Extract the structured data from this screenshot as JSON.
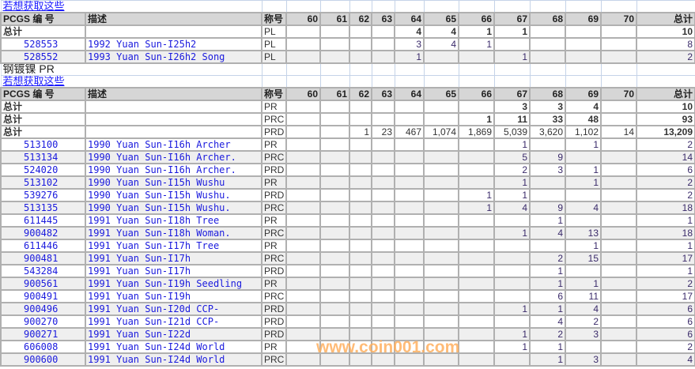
{
  "grade_headers": [
    "60",
    "61",
    "62",
    "63",
    "64",
    "65",
    "66",
    "67",
    "68",
    "69",
    "70"
  ],
  "header": {
    "pcgs": "PCGS 编 号",
    "desc": "描述",
    "designation": "称号",
    "total": "总计"
  },
  "sections": [
    {
      "title": "",
      "link": "若想获取这些",
      "totals": [
        {
          "label": "总计",
          "des": "PL",
          "grades": [
            "",
            "",
            "",
            "",
            "4",
            "4",
            "1",
            "1",
            "",
            "",
            ""
          ],
          "total": "10"
        }
      ],
      "rows": [
        {
          "id": "528553",
          "desc": "1992 Yuan Sun-I25h2",
          "des": "PL",
          "grades": [
            "",
            "",
            "",
            "",
            "3",
            "4",
            "1",
            "",
            "",
            "",
            ""
          ],
          "total": "8"
        },
        {
          "id": "528552",
          "desc": "1993 Yuan Sun-I26h2 Song",
          "des": "PL",
          "grades": [
            "",
            "",
            "",
            "",
            "1",
            "",
            "",
            "1",
            "",
            "",
            ""
          ],
          "total": "2"
        }
      ]
    },
    {
      "title": "钢镀镍  PR",
      "link": "若想获取这些",
      "totals": [
        {
          "label": "总计",
          "des": "PR",
          "grades": [
            "",
            "",
            "",
            "",
            "",
            "",
            "",
            "3",
            "3",
            "4",
            ""
          ],
          "total": "10"
        },
        {
          "label": "总计",
          "des": "PRC",
          "grades": [
            "",
            "",
            "",
            "",
            "",
            "",
            "1",
            "11",
            "33",
            "48",
            ""
          ],
          "total": "93"
        },
        {
          "label": "总计",
          "des": "PRD",
          "grades": [
            "",
            "",
            "1",
            "23",
            "467",
            "1,074",
            "1,869",
            "5,039",
            "3,620",
            "1,102",
            "14"
          ],
          "total": "13,209"
        }
      ],
      "rows": [
        {
          "id": "513100",
          "desc": "1990 Yuan Sun-I16h Archer",
          "des": "PR",
          "grades": [
            "",
            "",
            "",
            "",
            "",
            "",
            "",
            "1",
            "",
            "1",
            ""
          ],
          "total": "2"
        },
        {
          "id": "513134",
          "desc": "1990 Yuan Sun-I16h Archer.",
          "des": "PRC",
          "grades": [
            "",
            "",
            "",
            "",
            "",
            "",
            "",
            "5",
            "9",
            "",
            ""
          ],
          "total": "14"
        },
        {
          "id": "524020",
          "desc": "1990 Yuan Sun-I16h Archer.",
          "des": "PRD",
          "grades": [
            "",
            "",
            "",
            "",
            "",
            "",
            "",
            "2",
            "3",
            "1",
            ""
          ],
          "total": "6"
        },
        {
          "id": "513102",
          "desc": "1990 Yuan Sun-I15h Wushu",
          "des": "PR",
          "grades": [
            "",
            "",
            "",
            "",
            "",
            "",
            "",
            "1",
            "",
            "1",
            ""
          ],
          "total": "2"
        },
        {
          "id": "539276",
          "desc": "1990 Yuan Sun-I15h Wushu.",
          "des": "PRD",
          "grades": [
            "",
            "",
            "",
            "",
            "",
            "",
            "1",
            "1",
            "",
            "",
            ""
          ],
          "total": "2"
        },
        {
          "id": "513135",
          "desc": "1990 Yuan Sun-I15h Wushu.",
          "des": "PRC",
          "grades": [
            "",
            "",
            "",
            "",
            "",
            "",
            "1",
            "4",
            "9",
            "4",
            ""
          ],
          "total": "18"
        },
        {
          "id": "611445",
          "desc": "1991 Yuan Sun-I18h Tree",
          "des": "PR",
          "grades": [
            "",
            "",
            "",
            "",
            "",
            "",
            "",
            "",
            "1",
            "",
            ""
          ],
          "total": "1"
        },
        {
          "id": "900482",
          "desc": "1991 Yuan Sun-I18h Woman.",
          "des": "PRC",
          "grades": [
            "",
            "",
            "",
            "",
            "",
            "",
            "",
            "1",
            "4",
            "13",
            ""
          ],
          "total": "18"
        },
        {
          "id": "611446",
          "desc": "1991 Yuan Sun-I17h Tree",
          "des": "PR",
          "grades": [
            "",
            "",
            "",
            "",
            "",
            "",
            "",
            "",
            "",
            "1",
            ""
          ],
          "total": "1"
        },
        {
          "id": "900481",
          "desc": "1991 Yuan Sun-I17h",
          "des": "PRC",
          "grades": [
            "",
            "",
            "",
            "",
            "",
            "",
            "",
            "",
            "2",
            "15",
            ""
          ],
          "total": "17"
        },
        {
          "id": "543284",
          "desc": "1991 Yuan Sun-I17h",
          "des": "PRD",
          "grades": [
            "",
            "",
            "",
            "",
            "",
            "",
            "",
            "",
            "1",
            "",
            ""
          ],
          "total": "1"
        },
        {
          "id": "900561",
          "desc": "1991 Yuan Sun-I19h Seedling",
          "des": "PR",
          "grades": [
            "",
            "",
            "",
            "",
            "",
            "",
            "",
            "",
            "1",
            "1",
            ""
          ],
          "total": "2"
        },
        {
          "id": "900491",
          "desc": "1991 Yuan Sun-I19h",
          "des": "PRC",
          "grades": [
            "",
            "",
            "",
            "",
            "",
            "",
            "",
            "",
            "6",
            "11",
            ""
          ],
          "total": "17"
        },
        {
          "id": "900496",
          "desc": "1991 Yuan Sun-I20d CCP-",
          "des": "PRD",
          "grades": [
            "",
            "",
            "",
            "",
            "",
            "",
            "",
            "1",
            "1",
            "4",
            ""
          ],
          "total": "6"
        },
        {
          "id": "900270",
          "desc": "1991 Yuan Sun-I21d CCP-",
          "des": "PRD",
          "grades": [
            "",
            "",
            "",
            "",
            "",
            "",
            "",
            "",
            "4",
            "2",
            ""
          ],
          "total": "6"
        },
        {
          "id": "900271",
          "desc": "1991 Yuan Sun-I22d",
          "des": "PRD",
          "grades": [
            "",
            "",
            "",
            "",
            "",
            "",
            "",
            "1",
            "2",
            "3",
            ""
          ],
          "total": "6"
        },
        {
          "id": "606008",
          "desc": "1991 Yuan Sun-I24d World",
          "des": "PR",
          "grades": [
            "",
            "",
            "",
            "",
            "",
            "",
            "",
            "1",
            "1",
            "",
            ""
          ],
          "total": "2"
        },
        {
          "id": "900600",
          "desc": "1991 Yuan Sun-I24d World",
          "des": "PRC",
          "grades": [
            "",
            "",
            "",
            "",
            "",
            "",
            "",
            "",
            "1",
            "3",
            ""
          ],
          "total": "4"
        }
      ]
    }
  ],
  "watermark": "www.coin001.com"
}
